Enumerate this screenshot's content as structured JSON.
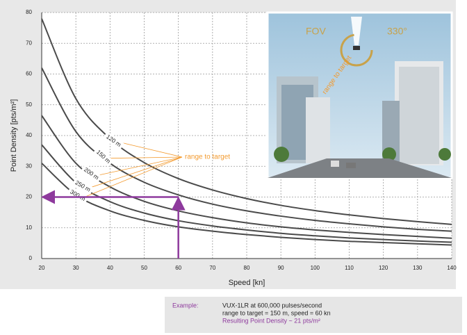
{
  "chart_data": {
    "type": "line",
    "x": [
      20,
      30,
      40,
      50,
      60,
      70,
      80,
      90,
      100,
      110,
      120,
      130,
      140
    ],
    "series": [
      {
        "name": "120 m",
        "color": "#4a4a4a",
        "values": [
          78,
          52,
          39,
          31.2,
          26,
          22.3,
          19.5,
          17.3,
          15.6,
          14.2,
          13,
          12,
          11.1
        ]
      },
      {
        "name": "150 m",
        "color": "#4a4a4a",
        "values": [
          62,
          41.3,
          31,
          24.8,
          20.7,
          17.7,
          15.5,
          13.8,
          12.4,
          11.3,
          10.3,
          9.5,
          8.9
        ]
      },
      {
        "name": "200 m",
        "color": "#4a4a4a",
        "values": [
          46.5,
          31,
          23.3,
          18.6,
          15.5,
          13.3,
          11.6,
          10.3,
          9.3,
          8.5,
          7.8,
          7.2,
          6.6
        ]
      },
      {
        "name": "250 m",
        "color": "#4a4a4a",
        "values": [
          37,
          24.7,
          18.5,
          14.8,
          12.3,
          10.6,
          9.3,
          8.2,
          7.4,
          6.7,
          6.2,
          5.7,
          5.3
        ]
      },
      {
        "name": "300 m",
        "color": "#4a4a4a",
        "values": [
          31,
          20.7,
          15.5,
          12.4,
          10.3,
          8.9,
          7.8,
          6.9,
          6.2,
          5.6,
          5.2,
          4.8,
          4.4
        ]
      }
    ],
    "xlim": [
      20,
      140
    ],
    "ylim": [
      0,
      80
    ],
    "xticks": [
      20,
      30,
      40,
      50,
      60,
      70,
      80,
      90,
      100,
      110,
      120,
      130,
      140
    ],
    "yticks": [
      0,
      10,
      20,
      30,
      40,
      50,
      60,
      70,
      80
    ],
    "grid": true,
    "x_label": "Speed [kn]",
    "y_label": "Point Density [pts/m²]",
    "annotation": "range to target",
    "annotation_color": "#f39a2e",
    "highlight": {
      "x": 60,
      "y": 20,
      "color": "#8e3a9d"
    }
  },
  "inset": {
    "fov_label": "FOV",
    "angle_label": "330°",
    "range_label": "range to target"
  },
  "example": {
    "label": "Example:",
    "lines": [
      "VUX-1LR at 600,000 pulses/second",
      "range to target = 150 m, speed = 60 kn"
    ],
    "result": "Resulting Point Density ~ 21 pts/m²"
  }
}
